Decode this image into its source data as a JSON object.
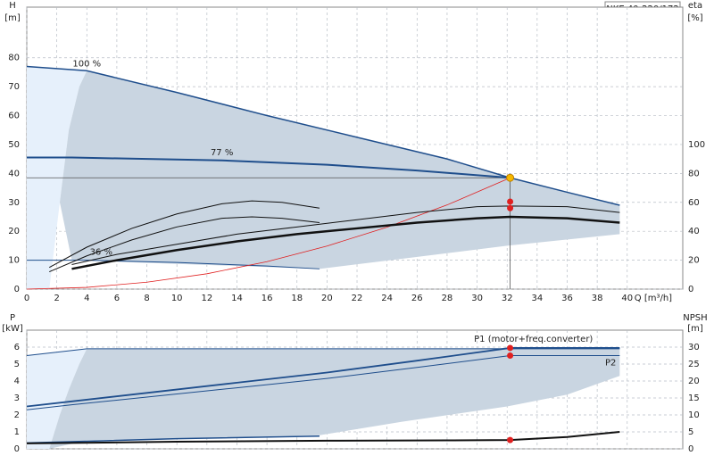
{
  "title": "NKE 40-220/172",
  "chart_data": [
    {
      "type": "line",
      "y_label": "H",
      "y_unit": "[m]",
      "y2_label": "eta",
      "y2_unit": "[%]",
      "x_label": "Q [m³/h]",
      "xlim": [
        0,
        43.7
      ],
      "xticks": [
        0,
        2,
        4,
        6,
        8,
        10,
        12,
        14,
        16,
        18,
        20,
        22,
        24,
        26,
        28,
        30,
        32,
        34,
        36,
        38,
        40
      ],
      "ylim": [
        0,
        97.5
      ],
      "yticks": [
        0,
        10,
        20,
        30,
        40,
        50,
        60,
        70,
        80
      ],
      "y2lim": [
        0,
        195
      ],
      "y2ticks": [
        0,
        20,
        40,
        60,
        80,
        100
      ],
      "grid": true,
      "operating_point": {
        "x": 32.2,
        "y": 38.5,
        "color": "#f5b800"
      },
      "series": [
        {
          "kind": "area",
          "fill": "#e6f0fb",
          "x": [
            0,
            4,
            3.5,
            2.8,
            2.2,
            1.5,
            0
          ],
          "values": [
            77,
            75.5,
            70,
            55,
            30,
            0,
            0
          ]
        },
        {
          "kind": "area",
          "fill": "#c9d5e1",
          "x": [
            4,
            10,
            16,
            22,
            28,
            32.2,
            36,
            39.5,
            39.5,
            32,
            25,
            19.5,
            3,
            2.2,
            2.8,
            3.5
          ],
          "values": [
            75.5,
            68,
            60,
            52.5,
            45,
            38.5,
            33.5,
            29,
            19,
            15,
            10.5,
            7,
            10,
            30,
            55,
            70
          ]
        },
        {
          "kind": "line",
          "name": "100 %",
          "color": "#1f4e8c",
          "width": 1.5,
          "x": [
            0,
            4,
            10,
            16,
            22,
            28,
            32.2,
            36,
            39.5
          ],
          "values": [
            77,
            75.5,
            68,
            60,
            52.5,
            45,
            38.5,
            33.5,
            29
          ]
        },
        {
          "kind": "line",
          "name": "77 %",
          "color": "#1f4e8c",
          "width": 2,
          "x": [
            0,
            3,
            13,
            20,
            26,
            32.2
          ],
          "values": [
            45.5,
            45.5,
            44.5,
            43,
            41,
            38.5
          ]
        },
        {
          "kind": "line",
          "name": "36 %",
          "color": "#1f4e8c",
          "width": 1,
          "x": [
            0,
            4,
            10,
            16,
            19.5
          ],
          "values": [
            10,
            10,
            9.2,
            8,
            7
          ]
        },
        {
          "kind": "line",
          "color": "#e02020",
          "width": 0.8,
          "x": [
            0,
            4,
            8,
            12,
            16,
            20,
            24,
            28,
            32.2
          ],
          "values": [
            0,
            0.6,
            2.4,
            5.3,
            9.5,
            14.9,
            21.4,
            29.1,
            38.5
          ]
        },
        {
          "kind": "line",
          "axis": "y2",
          "color": "#111",
          "width": 2.5,
          "x": [
            3,
            6,
            10,
            14,
            18,
            22,
            26,
            30,
            32.2,
            36,
            39.5
          ],
          "values": [
            14,
            20,
            27,
            33,
            38,
            42,
            46,
            49,
            50,
            49,
            46
          ]
        },
        {
          "kind": "line",
          "axis": "y2",
          "color": "#111",
          "width": 1,
          "x": [
            3,
            6,
            10,
            14,
            18,
            22,
            26,
            30,
            32.2,
            36,
            39.5
          ],
          "values": [
            17,
            24,
            31,
            38,
            43,
            48,
            53,
            57,
            57.5,
            57,
            53
          ]
        },
        {
          "kind": "line",
          "axis": "y2",
          "color": "#111",
          "width": 1,
          "x": [
            1.5,
            4,
            7,
            10,
            13,
            15,
            17,
            19.5
          ],
          "values": [
            15,
            29,
            42,
            52,
            59,
            61,
            60,
            56
          ]
        },
        {
          "kind": "line",
          "axis": "y2",
          "color": "#111",
          "width": 1,
          "x": [
            1.5,
            4,
            7,
            10,
            13,
            15,
            17,
            19.5
          ],
          "values": [
            12,
            23,
            34,
            43,
            49,
            50,
            49,
            46
          ]
        },
        {
          "kind": "points",
          "axis": "y2",
          "color": "#e02020",
          "x": [
            32.2,
            32.2
          ],
          "values": [
            60.5,
            56
          ]
        }
      ]
    },
    {
      "type": "line",
      "y_label": "P",
      "y_unit": "[kW]",
      "y2_label": "NPSH",
      "y2_unit": "[m]",
      "xlim": [
        0,
        43.7
      ],
      "ylim": [
        0,
        7
      ],
      "yticks": [
        0,
        1,
        2,
        3,
        4,
        5,
        6
      ],
      "y2lim": [
        0,
        35
      ],
      "y2ticks": [
        0,
        5,
        10,
        15,
        20,
        25,
        30
      ],
      "grid": true,
      "series": [
        {
          "kind": "area",
          "fill": "#e6f0fb",
          "x": [
            0,
            4,
            3.5,
            2.8,
            2.2,
            1.5,
            0
          ],
          "values": [
            5.5,
            5.9,
            5,
            3.5,
            2,
            0,
            0
          ]
        },
        {
          "kind": "area",
          "fill": "#c9d5e1",
          "x": [
            4,
            20,
            32.2,
            39.5,
            39.5,
            36,
            32,
            25,
            19.5,
            4,
            1.5,
            2.2,
            2.8,
            3.5
          ],
          "values": [
            5.9,
            5.9,
            5.95,
            5.95,
            4.3,
            3.2,
            2.5,
            1.6,
            0.8,
            0.5,
            0,
            2,
            3.5,
            5
          ]
        },
        {
          "kind": "line",
          "name": "P1 (motor+freq.converter)",
          "color": "#1f4e8c",
          "width": 1.8,
          "x": [
            0,
            3,
            8,
            14,
            20,
            26,
            32.2,
            36,
            39.5
          ],
          "values": [
            2.5,
            2.8,
            3.3,
            3.9,
            4.5,
            5.2,
            5.95,
            5.95,
            5.95
          ]
        },
        {
          "kind": "line",
          "name": "P2",
          "color": "#1f4e8c",
          "width": 1,
          "x": [
            0,
            3,
            8,
            14,
            20,
            26,
            32.2,
            36,
            39.5
          ],
          "values": [
            2.3,
            2.6,
            3.05,
            3.6,
            4.15,
            4.8,
            5.5,
            5.5,
            5.5
          ]
        },
        {
          "kind": "line",
          "color": "#1f4e8c",
          "width": 1,
          "x": [
            0,
            4,
            39.5
          ],
          "values": [
            5.5,
            5.9,
            5.9
          ]
        },
        {
          "kind": "line",
          "color": "#1f4e8c",
          "width": 1.5,
          "x": [
            0,
            4,
            10,
            19.5
          ],
          "values": [
            0.35,
            0.45,
            0.6,
            0.75
          ]
        },
        {
          "kind": "line",
          "axis": "y2",
          "color": "#111",
          "width": 2,
          "x": [
            0,
            10,
            20,
            28,
            32.2,
            36,
            39.5
          ],
          "values": [
            1.6,
            2.1,
            2.4,
            2.5,
            2.6,
            3.5,
            5
          ]
        },
        {
          "kind": "points",
          "color": "#e02020",
          "x": [
            32.2,
            32.2
          ],
          "values": [
            5.95,
            5.5
          ]
        },
        {
          "kind": "points",
          "axis": "y2",
          "color": "#e02020",
          "x": [
            32.2
          ],
          "values": [
            2.6
          ]
        }
      ]
    }
  ]
}
